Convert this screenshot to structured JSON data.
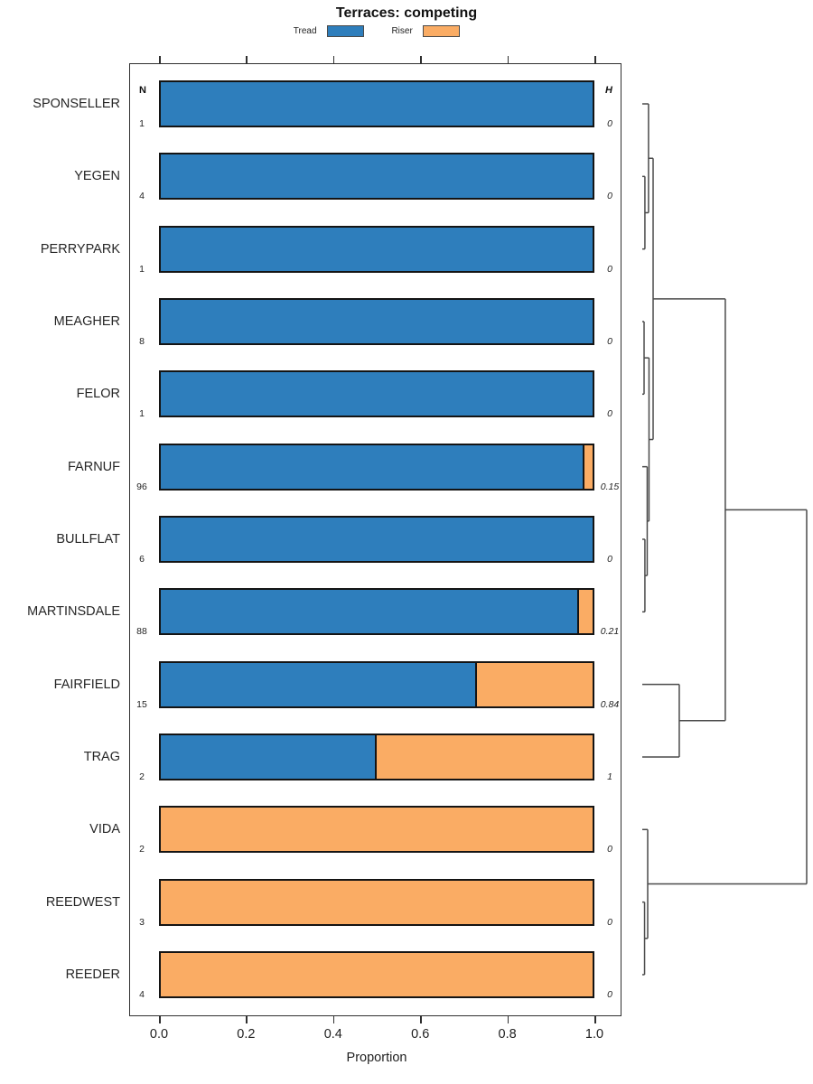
{
  "title": "Terraces: competing",
  "legend": {
    "items": [
      {
        "label": "Tread",
        "color": "#2E7EBC"
      },
      {
        "label": "Riser",
        "color": "#FAAC64"
      }
    ]
  },
  "columns": {
    "n_header": "N",
    "h_header": "H"
  },
  "axis": {
    "label": "Proportion",
    "tick_labels": [
      "0.0",
      "0.2",
      "0.4",
      "0.6",
      "0.8",
      "1.0"
    ],
    "tick_values": [
      0.0,
      0.2,
      0.4,
      0.6,
      0.8,
      1.0
    ],
    "range": [
      0.0,
      1.0
    ]
  },
  "chart_data": {
    "type": "bar",
    "orientation": "horizontal",
    "stacked": true,
    "title": "Terraces: competing",
    "xlabel": "Proportion",
    "xlim": [
      0.0,
      1.0
    ],
    "series_names": [
      "Tread",
      "Riser"
    ],
    "rows": [
      {
        "label": "SPONSELLER",
        "n": "1",
        "tread": 1.0,
        "riser": 0.0,
        "h": "0"
      },
      {
        "label": "YEGEN",
        "n": "4",
        "tread": 1.0,
        "riser": 0.0,
        "h": "0"
      },
      {
        "label": "PERRYPARK",
        "n": "1",
        "tread": 1.0,
        "riser": 0.0,
        "h": "0"
      },
      {
        "label": "MEAGHER",
        "n": "8",
        "tread": 1.0,
        "riser": 0.0,
        "h": "0"
      },
      {
        "label": "FELOR",
        "n": "1",
        "tread": 1.0,
        "riser": 0.0,
        "h": "0"
      },
      {
        "label": "FARNUF",
        "n": "96",
        "tread": 0.977,
        "riser": 0.023,
        "h": "0.15"
      },
      {
        "label": "BULLFLAT",
        "n": "6",
        "tread": 1.0,
        "riser": 0.0,
        "h": "0"
      },
      {
        "label": "MARTINSDALE",
        "n": "88",
        "tread": 0.965,
        "riser": 0.035,
        "h": "0.21"
      },
      {
        "label": "FAIRFIELD",
        "n": "15",
        "tread": 0.73,
        "riser": 0.27,
        "h": "0.84"
      },
      {
        "label": "TRAG",
        "n": "2",
        "tread": 0.5,
        "riser": 0.5,
        "h": "1"
      },
      {
        "label": "VIDA",
        "n": "2",
        "tread": 0.0,
        "riser": 1.0,
        "h": "0"
      },
      {
        "label": "REEDWEST",
        "n": "3",
        "tread": 0.0,
        "riser": 1.0,
        "h": "0"
      },
      {
        "label": "REEDER",
        "n": "4",
        "tread": 0.0,
        "riser": 1.0,
        "h": "0"
      }
    ]
  },
  "dendrogram": {
    "leaf_order": [
      "SPONSELLER",
      "YEGEN",
      "PERRYPARK",
      "MEAGHER",
      "FELOR",
      "FARNUF",
      "BULLFLAT",
      "MARTINSDALE",
      "FAIRFIELD",
      "TRAG",
      "VIDA",
      "REEDWEST",
      "REEDER"
    ],
    "merges": [
      {
        "id": "m1",
        "a": "YEGEN",
        "b": "PERRYPARK",
        "height": 0.016
      },
      {
        "id": "m2",
        "a": "SPONSELLER",
        "b": "m1",
        "height": 0.038
      },
      {
        "id": "m3",
        "a": "MEAGHER",
        "b": "FELOR",
        "height": 0.011
      },
      {
        "id": "m4",
        "a": "BULLFLAT",
        "b": "MARTINSDALE",
        "height": 0.016
      },
      {
        "id": "m5",
        "a": "FARNUF",
        "b": "m4",
        "height": 0.03
      },
      {
        "id": "m6",
        "a": "m3",
        "b": "m5",
        "height": 0.041
      },
      {
        "id": "m7",
        "a": "m2",
        "b": "m6",
        "height": 0.066
      },
      {
        "id": "m8",
        "a": "FAIRFIELD",
        "b": "TRAG",
        "height": 0.225
      },
      {
        "id": "m9",
        "a": "m7",
        "b": "m8",
        "height": 0.505
      },
      {
        "id": "m11",
        "a": "REEDWEST",
        "b": "REEDER",
        "height": 0.014
      },
      {
        "id": "m10",
        "a": "VIDA",
        "b": "m11",
        "height": 0.033
      },
      {
        "id": "root",
        "a": "m9",
        "b": "m10",
        "height": 1.0
      }
    ]
  }
}
